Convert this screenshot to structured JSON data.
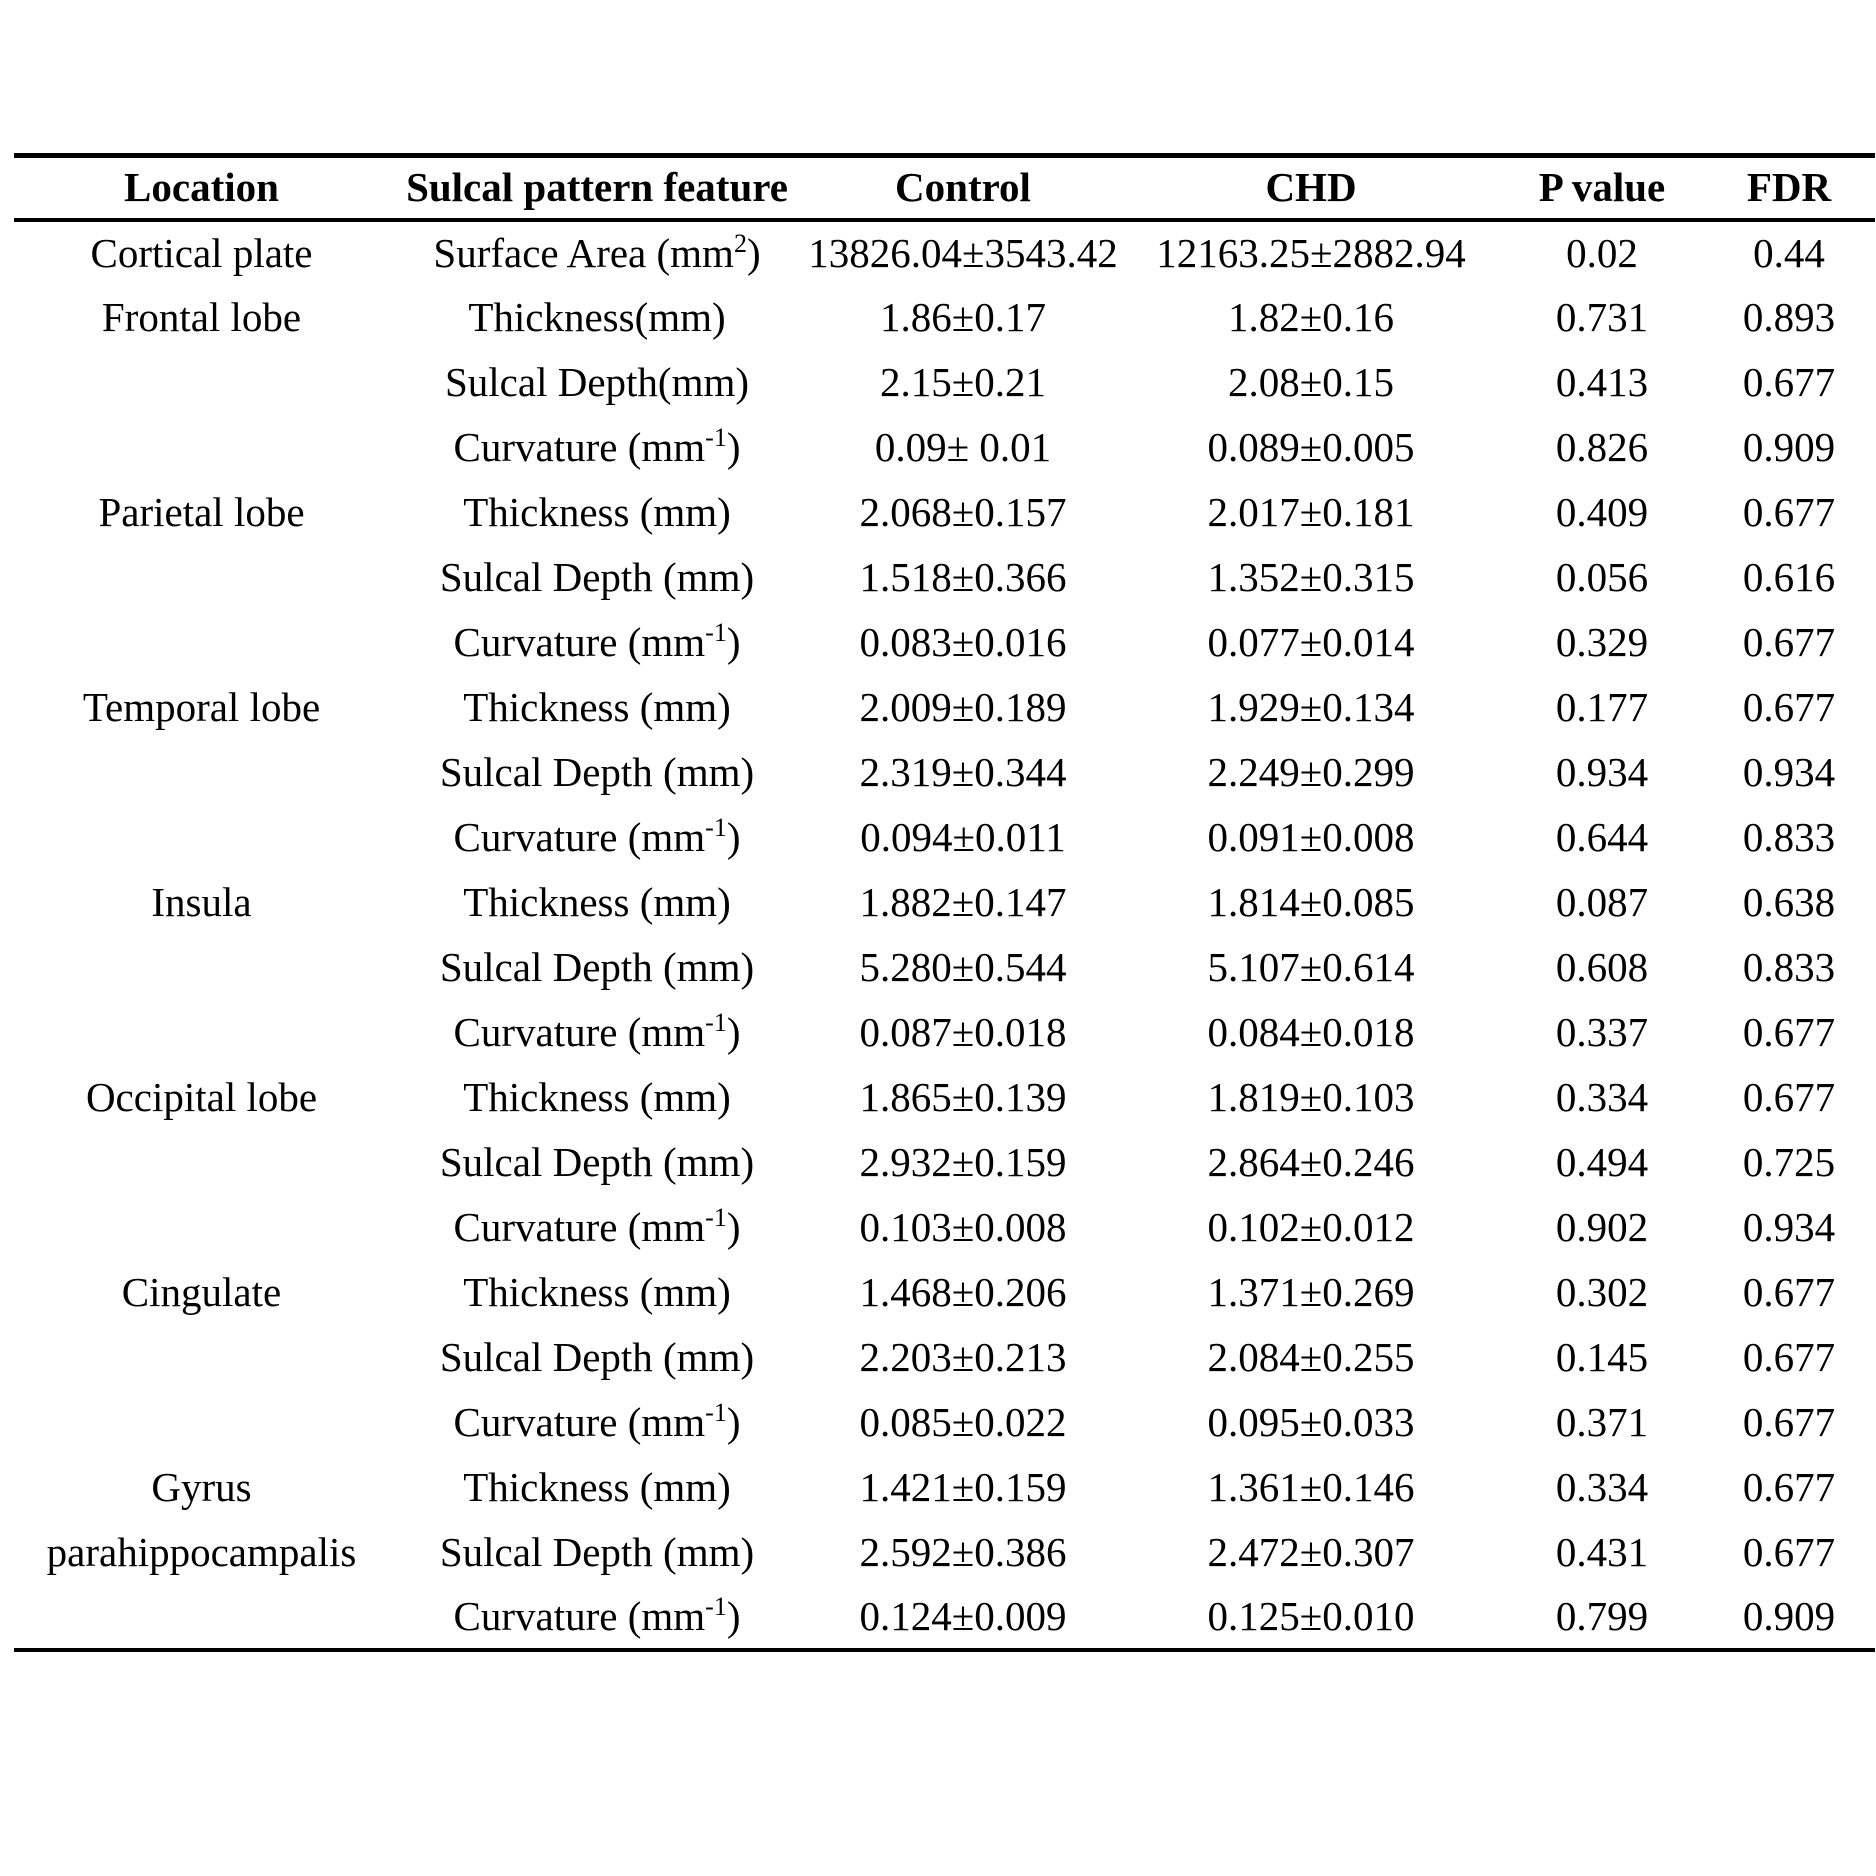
{
  "table": {
    "columns": [
      "Location",
      "Sulcal pattern feature",
      "Control",
      "CHD",
      "P value",
      "FDR"
    ],
    "rows": [
      {
        "location": "Cortical plate",
        "feature": "Surface Area (mm",
        "feature_sup": "2",
        "feature_end": ")",
        "control": "13826.04±3543.42",
        "chd": "12163.25±2882.94",
        "p_value": "0.02",
        "p_bold": true,
        "fdr": "0.44"
      },
      {
        "location": "Frontal lobe",
        "feature": "Thickness(mm)",
        "feature_sup": "",
        "feature_end": "",
        "control": "1.86±0.17",
        "chd": "1.82±0.16",
        "p_value": "0.731",
        "p_bold": false,
        "fdr": "0.893"
      },
      {
        "location": "",
        "feature": "Sulcal Depth(mm)",
        "feature_sup": "",
        "feature_end": "",
        "control": "2.15±0.21",
        "chd": "2.08±0.15",
        "p_value": "0.413",
        "p_bold": false,
        "fdr": "0.677"
      },
      {
        "location": "",
        "feature": "Curvature (mm",
        "feature_sup": "-1",
        "feature_end": ")",
        "control": "0.09± 0.01",
        "chd": "0.089±0.005",
        "p_value": "0.826",
        "p_bold": false,
        "fdr": "0.909"
      },
      {
        "location": "Parietal lobe",
        "feature": "Thickness (mm)",
        "feature_sup": "",
        "feature_end": "",
        "control": "2.068±0.157",
        "chd": "2.017±0.181",
        "p_value": "0.409",
        "p_bold": false,
        "fdr": "0.677"
      },
      {
        "location": "",
        "feature": "Sulcal Depth (mm)",
        "feature_sup": "",
        "feature_end": "",
        "control": "1.518±0.366",
        "chd": "1.352±0.315",
        "p_value": "0.056",
        "p_bold": false,
        "fdr": "0.616"
      },
      {
        "location": "",
        "feature": "Curvature (mm",
        "feature_sup": "-1",
        "feature_end": ")",
        "control": "0.083±0.016",
        "chd": "0.077±0.014",
        "p_value": "0.329",
        "p_bold": false,
        "fdr": "0.677"
      },
      {
        "location": "Temporal lobe",
        "feature": "Thickness (mm)",
        "feature_sup": "",
        "feature_end": "",
        "control": "2.009±0.189",
        "chd": "1.929±0.134",
        "p_value": "0.177",
        "p_bold": false,
        "fdr": "0.677"
      },
      {
        "location": "",
        "feature": "Sulcal Depth (mm)",
        "feature_sup": "",
        "feature_end": "",
        "control": "2.319±0.344",
        "chd": "2.249±0.299",
        "p_value": "0.934",
        "p_bold": false,
        "fdr": "0.934"
      },
      {
        "location": "",
        "feature": "Curvature (mm",
        "feature_sup": "-1",
        "feature_end": ")",
        "control": "0.094±0.011",
        "chd": "0.091±0.008",
        "p_value": "0.644",
        "p_bold": false,
        "fdr": "0.833"
      },
      {
        "location": "Insula",
        "feature": "Thickness (mm)",
        "feature_sup": "",
        "feature_end": "",
        "control": "1.882±0.147",
        "chd": "1.814±0.085",
        "p_value": "0.087",
        "p_bold": true,
        "fdr": "0.638"
      },
      {
        "location": "",
        "feature": "Sulcal Depth (mm)",
        "feature_sup": "",
        "feature_end": "",
        "control": "5.280±0.544",
        "chd": "5.107±0.614",
        "p_value": "0.608",
        "p_bold": false,
        "fdr": "0.833"
      },
      {
        "location": "",
        "feature": "Curvature (mm",
        "feature_sup": "-1",
        "feature_end": ")",
        "control": "0.087±0.018",
        "chd": "0.084±0.018",
        "p_value": "0.337",
        "p_bold": false,
        "fdr": "0.677"
      },
      {
        "location": "Occipital lobe",
        "feature": "Thickness (mm)",
        "feature_sup": "",
        "feature_end": "",
        "control": "1.865±0.139",
        "chd": "1.819±0.103",
        "p_value": "0.334",
        "p_bold": false,
        "fdr": "0.677"
      },
      {
        "location": "",
        "feature": "Sulcal Depth (mm)",
        "feature_sup": "",
        "feature_end": "",
        "control": "2.932±0.159",
        "chd": "2.864±0.246",
        "p_value": "0.494",
        "p_bold": false,
        "fdr": "0.725"
      },
      {
        "location": "",
        "feature": "Curvature (mm",
        "feature_sup": "-1",
        "feature_end": ")",
        "control": "0.103±0.008",
        "chd": "0.102±0.012",
        "p_value": "0.902",
        "p_bold": false,
        "fdr": "0.934"
      },
      {
        "location": "Cingulate",
        "feature": "Thickness (mm)",
        "feature_sup": "",
        "feature_end": "",
        "control": "1.468±0.206",
        "chd": "1.371±0.269",
        "p_value": "0.302",
        "p_bold": false,
        "fdr": "0.677"
      },
      {
        "location": "",
        "feature": "Sulcal Depth (mm)",
        "feature_sup": "",
        "feature_end": "",
        "control": "2.203±0.213",
        "chd": "2.084±0.255",
        "p_value": "0.145",
        "p_bold": false,
        "fdr": "0.677"
      },
      {
        "location": "",
        "feature": "Curvature (mm",
        "feature_sup": "-1",
        "feature_end": ")",
        "control": "0.085±0.022",
        "chd": "0.095±0.033",
        "p_value": "0.371",
        "p_bold": false,
        "fdr": "0.677"
      },
      {
        "location": "Gyrus",
        "feature": "Thickness (mm)",
        "feature_sup": "",
        "feature_end": "",
        "control": "1.421±0.159",
        "chd": "1.361±0.146",
        "p_value": "0.334",
        "p_bold": false,
        "fdr": "0.677"
      },
      {
        "location": "parahippocampalis",
        "feature": "Sulcal Depth (mm)",
        "feature_sup": "",
        "feature_end": "",
        "control": "2.592±0.386",
        "chd": "2.472±0.307",
        "p_value": "0.431",
        "p_bold": false,
        "fdr": "0.677"
      },
      {
        "location": "",
        "feature": "Curvature (mm",
        "feature_sup": "-1",
        "feature_end": ")",
        "control": "0.124±0.009",
        "chd": "0.125±0.010",
        "p_value": "0.799",
        "p_bold": false,
        "fdr": "0.909"
      }
    ]
  }
}
